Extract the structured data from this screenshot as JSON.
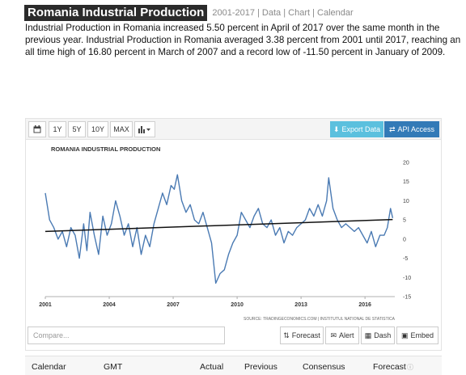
{
  "page": {
    "title": "Romania Industrial Production",
    "title_links": "2001-2017 | Data | Chart | Calendar",
    "description": "Industrial Production in Romania increased 5.50 percent in April of 2017 over the same month in the previous year. Industrial Production in Romania averaged 3.38 percent from 2001 until 2017, reaching an all time high of 16.80 percent in March of 2007 and a record low of -11.50 percent in January of 2009."
  },
  "toolbar": {
    "calendar_icon": "calendar-icon",
    "range_buttons": [
      "1Y",
      "5Y",
      "10Y",
      "MAX"
    ],
    "chart_type_icon": "bar-chart-icon",
    "export_label": "Export Data",
    "api_label": "API Access"
  },
  "chart_data": {
    "type": "line",
    "title": "ROMANIA INDUSTRIAL PRODUCTION",
    "source": "SOURCE: TRADINGECONOMICS.COM | INSTITUTUL NATIONAL DE STATISTICA",
    "xlim": [
      2001,
      2017.4
    ],
    "ylim": [
      -15,
      20
    ],
    "x_ticks": [
      "2001",
      "2004",
      "2007",
      "2010",
      "2013",
      "2016"
    ],
    "y_ticks": [
      "20",
      "15",
      "10",
      "5",
      "0",
      "-5",
      "-10",
      "-15"
    ],
    "grid": false,
    "series": [
      {
        "values_note": "monthly percent change, approximated from chart",
        "points": [
          [
            2001.0,
            12
          ],
          [
            2001.2,
            5
          ],
          [
            2001.4,
            3
          ],
          [
            2001.6,
            0
          ],
          [
            2001.8,
            2
          ],
          [
            2002.0,
            -2
          ],
          [
            2002.2,
            3
          ],
          [
            2002.4,
            1
          ],
          [
            2002.6,
            -5
          ],
          [
            2002.8,
            4
          ],
          [
            2002.95,
            -3
          ],
          [
            2003.1,
            7
          ],
          [
            2003.3,
            1
          ],
          [
            2003.5,
            -4
          ],
          [
            2003.7,
            6
          ],
          [
            2003.9,
            1
          ],
          [
            2004.1,
            4
          ],
          [
            2004.3,
            10
          ],
          [
            2004.5,
            6
          ],
          [
            2004.7,
            1
          ],
          [
            2004.9,
            4
          ],
          [
            2005.1,
            -2
          ],
          [
            2005.3,
            3
          ],
          [
            2005.5,
            -4
          ],
          [
            2005.7,
            1
          ],
          [
            2005.9,
            -2
          ],
          [
            2006.1,
            4
          ],
          [
            2006.3,
            8
          ],
          [
            2006.5,
            12
          ],
          [
            2006.7,
            9
          ],
          [
            2006.9,
            14
          ],
          [
            2007.05,
            13
          ],
          [
            2007.2,
            16.8
          ],
          [
            2007.4,
            10
          ],
          [
            2007.6,
            7
          ],
          [
            2007.8,
            9
          ],
          [
            2008.0,
            5
          ],
          [
            2008.2,
            4
          ],
          [
            2008.4,
            7
          ],
          [
            2008.6,
            3
          ],
          [
            2008.8,
            -1
          ],
          [
            2009.0,
            -11.5
          ],
          [
            2009.2,
            -9
          ],
          [
            2009.4,
            -8
          ],
          [
            2009.6,
            -4
          ],
          [
            2009.8,
            -1
          ],
          [
            2010.0,
            1
          ],
          [
            2010.2,
            7
          ],
          [
            2010.4,
            5
          ],
          [
            2010.6,
            3
          ],
          [
            2010.8,
            6
          ],
          [
            2011.0,
            8
          ],
          [
            2011.2,
            4
          ],
          [
            2011.4,
            3
          ],
          [
            2011.6,
            5
          ],
          [
            2011.8,
            1
          ],
          [
            2012.0,
            3
          ],
          [
            2012.2,
            -1
          ],
          [
            2012.4,
            2
          ],
          [
            2012.6,
            1
          ],
          [
            2012.8,
            3
          ],
          [
            2013.0,
            4
          ],
          [
            2013.2,
            5
          ],
          [
            2013.4,
            8
          ],
          [
            2013.6,
            6
          ],
          [
            2013.8,
            9
          ],
          [
            2014.0,
            6
          ],
          [
            2014.2,
            10
          ],
          [
            2014.3,
            16
          ],
          [
            2014.5,
            8
          ],
          [
            2014.7,
            5
          ],
          [
            2014.9,
            3
          ],
          [
            2015.1,
            4
          ],
          [
            2015.3,
            3
          ],
          [
            2015.5,
            2
          ],
          [
            2015.7,
            3
          ],
          [
            2015.9,
            1
          ],
          [
            2016.1,
            -1
          ],
          [
            2016.3,
            2
          ],
          [
            2016.5,
            -2
          ],
          [
            2016.7,
            1
          ],
          [
            2016.9,
            1
          ],
          [
            2017.05,
            3
          ],
          [
            2017.2,
            8
          ],
          [
            2017.3,
            5.5
          ]
        ]
      },
      {
        "name_note": "trend line",
        "points": [
          [
            2001.0,
            2.0
          ],
          [
            2017.3,
            5.1
          ]
        ]
      }
    ]
  },
  "controls": {
    "compare_placeholder": "Compare...",
    "forecast_label": "Forecast",
    "alert_label": "Alert",
    "dash_label": "Dash",
    "embed_label": "Embed"
  },
  "table": {
    "headers": [
      "Calendar",
      "GMT",
      "Actual",
      "Previous",
      "Consensus",
      "Forecast"
    ]
  }
}
